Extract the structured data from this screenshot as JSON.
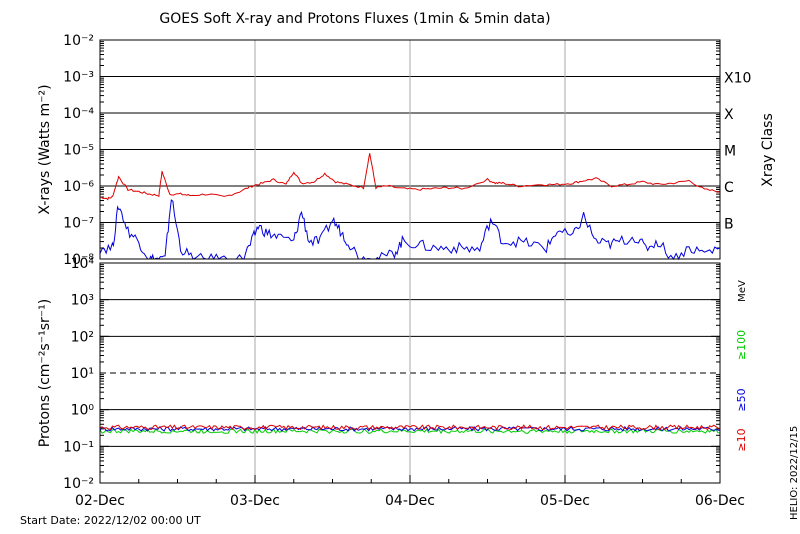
{
  "chart_data": [
    {
      "type": "line",
      "title": "GOES Soft X-ray and Protons Fluxes   (1min & 5min data)",
      "ylabel": "X-rays (Watts m⁻²)",
      "yscale": "log",
      "ylim": [
        1e-08,
        0.01
      ],
      "ytick_labels": [
        "10⁻⁸",
        "10⁻⁷",
        "10⁻⁶",
        "10⁻⁵",
        "10⁻⁴",
        "10⁻³",
        "10⁻²"
      ],
      "class_axis_label": "Xray Class",
      "class_labels": [
        "B",
        "C",
        "M",
        "X",
        "X10"
      ],
      "x_range": [
        "2022-12-02",
        "2022-12-06"
      ],
      "x_tick_labels": [
        "02-Dec",
        "03-Dec",
        "04-Dec",
        "05-Dec",
        "06-Dec"
      ],
      "grid": true,
      "series": [
        {
          "color": "#e00000",
          "x_days": [
            0.0,
            0.05,
            0.08,
            0.12,
            0.18,
            0.25,
            0.32,
            0.38,
            0.4,
            0.45,
            0.52,
            0.58,
            0.7,
            0.8,
            0.9,
            0.98,
            1.05,
            1.12,
            1.2,
            1.25,
            1.3,
            1.38,
            1.45,
            1.52,
            1.6,
            1.7,
            1.74,
            1.78,
            1.85,
            1.95,
            2.05,
            2.15,
            2.25,
            2.35,
            2.5,
            2.55,
            2.6,
            2.7,
            2.85,
            2.95,
            3.05,
            3.12,
            3.2,
            3.3,
            3.4,
            3.5,
            3.6,
            3.7,
            3.8,
            3.9,
            4.0
          ],
          "values": [
            5e-07,
            4.5e-07,
            5e-07,
            1.8e-06,
            8e-07,
            7e-07,
            6e-07,
            5.5e-07,
            2.5e-06,
            6e-07,
            6e-07,
            5.5e-07,
            6e-07,
            5e-07,
            7e-07,
            1e-06,
            1.2e-06,
            1.5e-06,
            1.1e-06,
            2.5e-06,
            1.2e-06,
            1.3e-06,
            2.2e-06,
            1.3e-06,
            1.1e-06,
            9e-07,
            8e-06,
            9e-07,
            1e-06,
            8.5e-07,
            8e-07,
            8.5e-07,
            9e-07,
            8.5e-07,
            1.5e-06,
            1.2e-06,
            1.2e-06,
            1e-06,
            1.1e-06,
            1.1e-06,
            1.2e-06,
            1.4e-06,
            1.6e-06,
            1e-06,
            1.1e-06,
            1.3e-06,
            1.1e-06,
            1.2e-06,
            1.4e-06,
            8e-07,
            7e-07
          ]
        },
        {
          "color": "#0000e0",
          "x_days": [
            0.0,
            0.08,
            0.12,
            0.18,
            0.25,
            0.32,
            0.36,
            0.42,
            0.46,
            0.52,
            0.6,
            0.7,
            0.8,
            0.92,
            0.98,
            1.02,
            1.08,
            1.15,
            1.25,
            1.3,
            1.35,
            1.42,
            1.5,
            1.55,
            1.6,
            1.68,
            1.74,
            1.8,
            1.9,
            1.95,
            2.05,
            2.15,
            2.25,
            2.35,
            2.45,
            2.52,
            2.6,
            2.7,
            2.8,
            2.88,
            2.95,
            3.05,
            3.12,
            3.2,
            3.28,
            3.35,
            3.45,
            3.52,
            3.6,
            3.7,
            3.8,
            3.9,
            4.0
          ],
          "values": [
            2e-08,
            2e-08,
            3e-07,
            6e-08,
            3e-08,
            1e-08,
            1e-08,
            1e-08,
            5e-07,
            2e-08,
            1e-08,
            1e-08,
            1e-08,
            1e-08,
            3e-08,
            8e-08,
            5e-08,
            4e-08,
            3e-08,
            2e-07,
            3e-08,
            3e-08,
            1.2e-07,
            6e-08,
            3e-08,
            1e-08,
            1e-08,
            1e-08,
            1.5e-08,
            3e-08,
            2.5e-08,
            2e-08,
            2e-08,
            2e-08,
            1.8e-08,
            1.2e-07,
            3e-08,
            3e-08,
            2.5e-08,
            2e-08,
            6e-08,
            4e-08,
            1.5e-07,
            3e-08,
            2.5e-08,
            3e-08,
            4e-08,
            2e-08,
            3e-08,
            1e-08,
            2e-08,
            1.5e-08,
            2e-08
          ]
        }
      ]
    },
    {
      "type": "line",
      "ylabel": "Protons (cm⁻²s⁻¹sr⁻¹)",
      "yscale": "log",
      "ylim": [
        0.01,
        10000
      ],
      "ytick_labels": [
        "10⁻²",
        "10⁻¹",
        "10⁰",
        "10¹",
        "10²",
        "10³",
        "10⁴"
      ],
      "unit_label": "MeV",
      "x_range": [
        "2022-12-02",
        "2022-12-06"
      ],
      "x_tick_labels": [
        "02-Dec",
        "03-Dec",
        "04-Dec",
        "05-Dec",
        "06-Dec"
      ],
      "threshold_dashed": 10,
      "grid": true,
      "series": [
        {
          "name": "≥10",
          "color": "#dd0000",
          "base": 0.33
        },
        {
          "name": "≥50",
          "color": "#0000dd",
          "base": 0.3
        },
        {
          "name": "≥100",
          "color": "#00cc00",
          "base": 0.26
        }
      ]
    }
  ],
  "footer": {
    "start_date": "Start Date: 2022/12/02 00:00 UT",
    "credit": "HELIO: 2022/12/15"
  }
}
